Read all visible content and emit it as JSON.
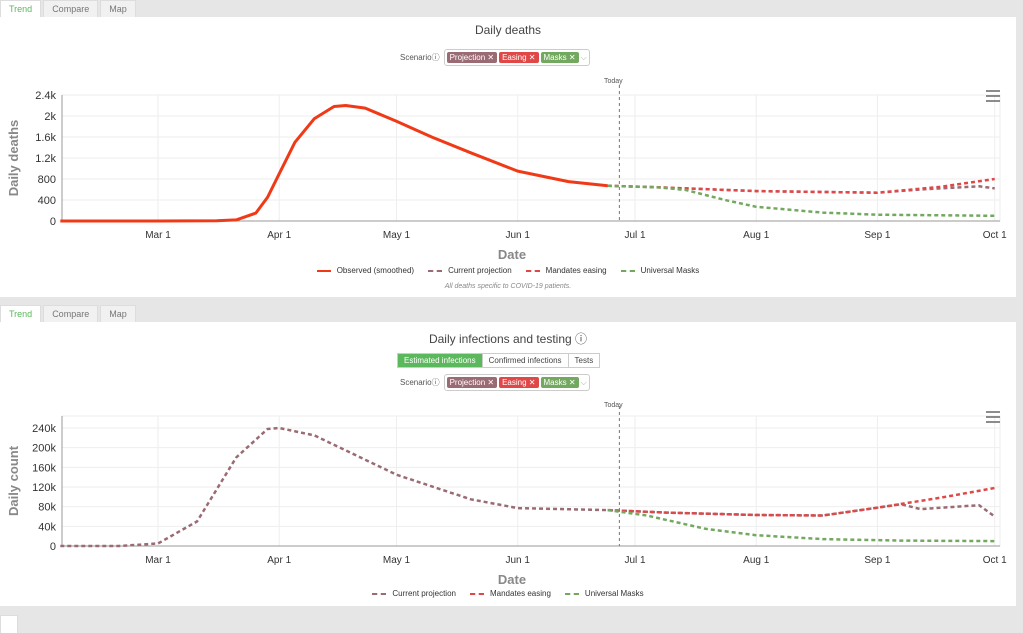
{
  "tabs": [
    "Trend",
    "Compare",
    "Map"
  ],
  "scenario_label": "Scenario",
  "chips": [
    {
      "label": "Projection",
      "color": "#9b6b74"
    },
    {
      "label": "Easing",
      "color": "#e04848"
    },
    {
      "label": "Masks",
      "color": "#73a85f"
    }
  ],
  "today_label": "Today",
  "infection_buttons": [
    "Estimated infections",
    "Confirmed infections",
    "Tests"
  ],
  "chart_data": [
    {
      "type": "line",
      "title": "Daily deaths",
      "xlabel": "Date",
      "ylabel": "Daily deaths",
      "ylim": [
        0,
        2400
      ],
      "yticks": [
        0,
        400,
        800,
        1200,
        1600,
        2000,
        2400
      ],
      "ytick_labels": [
        "0",
        "400",
        "800",
        "1.2k",
        "1.6k",
        "2k",
        "2.4k"
      ],
      "xticks": [
        60,
        91,
        121,
        152,
        182,
        213,
        244,
        274
      ],
      "xtick_labels": [
        "Mar 1",
        "Apr 1",
        "May 1",
        "Jun 1",
        "Jul 1",
        "Aug 1",
        "Sep 1",
        "Oct 1"
      ],
      "x_unit": "day of year 2020",
      "today": 178,
      "series": [
        {
          "name": "Observed (smoothed)",
          "color": "#f03a17",
          "dash": false,
          "x": [
            35,
            60,
            75,
            80,
            85,
            88,
            91,
            95,
            100,
            105,
            108,
            113,
            121,
            130,
            140,
            152,
            165,
            175
          ],
          "y": [
            0,
            0,
            5,
            20,
            150,
            450,
            900,
            1500,
            1950,
            2180,
            2200,
            2150,
            1900,
            1600,
            1300,
            950,
            750,
            670
          ]
        },
        {
          "name": "Current projection",
          "color": "#9b6b74",
          "dash": true,
          "x": [
            175,
            185,
            195,
            213,
            244,
            255,
            270,
            274
          ],
          "y": [
            670,
            650,
            620,
            570,
            540,
            600,
            660,
            620
          ]
        },
        {
          "name": "Mandates easing",
          "color": "#e04848",
          "dash": true,
          "x": [
            175,
            185,
            195,
            213,
            244,
            260,
            274
          ],
          "y": [
            670,
            650,
            620,
            570,
            540,
            650,
            800
          ]
        },
        {
          "name": "Universal Masks",
          "color": "#73a85f",
          "dash": true,
          "x": [
            175,
            188,
            195,
            205,
            213,
            230,
            244,
            274
          ],
          "y": [
            670,
            640,
            590,
            400,
            270,
            160,
            120,
            100
          ]
        }
      ],
      "note": "All deaths specific to COVID-19 patients."
    },
    {
      "type": "line",
      "title": "Daily infections and testing",
      "xlabel": "Date",
      "ylabel": "Daily count",
      "ylim": [
        0,
        260000
      ],
      "yticks": [
        0,
        40000,
        80000,
        120000,
        160000,
        200000,
        240000
      ],
      "ytick_labels": [
        "0",
        "40k",
        "80k",
        "120k",
        "160k",
        "200k",
        "240k"
      ],
      "xticks": [
        60,
        91,
        121,
        152,
        182,
        213,
        244,
        274
      ],
      "xtick_labels": [
        "Mar 1",
        "Apr 1",
        "May 1",
        "Jun 1",
        "Jul 1",
        "Aug 1",
        "Sep 1",
        "Oct 1"
      ],
      "x_unit": "day of year 2020",
      "today": 178,
      "series": [
        {
          "name": "Current projection",
          "color": "#9b6b74",
          "dash": true,
          "x": [
            35,
            50,
            60,
            70,
            80,
            88,
            91,
            100,
            121,
            140,
            152,
            175,
            190,
            213,
            230,
            244,
            250,
            255,
            270,
            274
          ],
          "y": [
            0,
            0,
            5000,
            50000,
            180000,
            238000,
            240000,
            225000,
            145000,
            95000,
            77000,
            73000,
            68000,
            63000,
            62000,
            78000,
            85000,
            75000,
            83000,
            60000
          ]
        },
        {
          "name": "Mandates easing",
          "color": "#e04848",
          "dash": true,
          "x": [
            175,
            190,
            213,
            230,
            244,
            260,
            274
          ],
          "y": [
            73000,
            68000,
            63000,
            62000,
            78000,
            98000,
            118000
          ]
        },
        {
          "name": "Universal Masks",
          "color": "#73a85f",
          "dash": true,
          "x": [
            175,
            185,
            200,
            213,
            230,
            250,
            274
          ],
          "y": [
            73000,
            62000,
            35000,
            22000,
            14000,
            11000,
            10000
          ]
        }
      ]
    }
  ]
}
